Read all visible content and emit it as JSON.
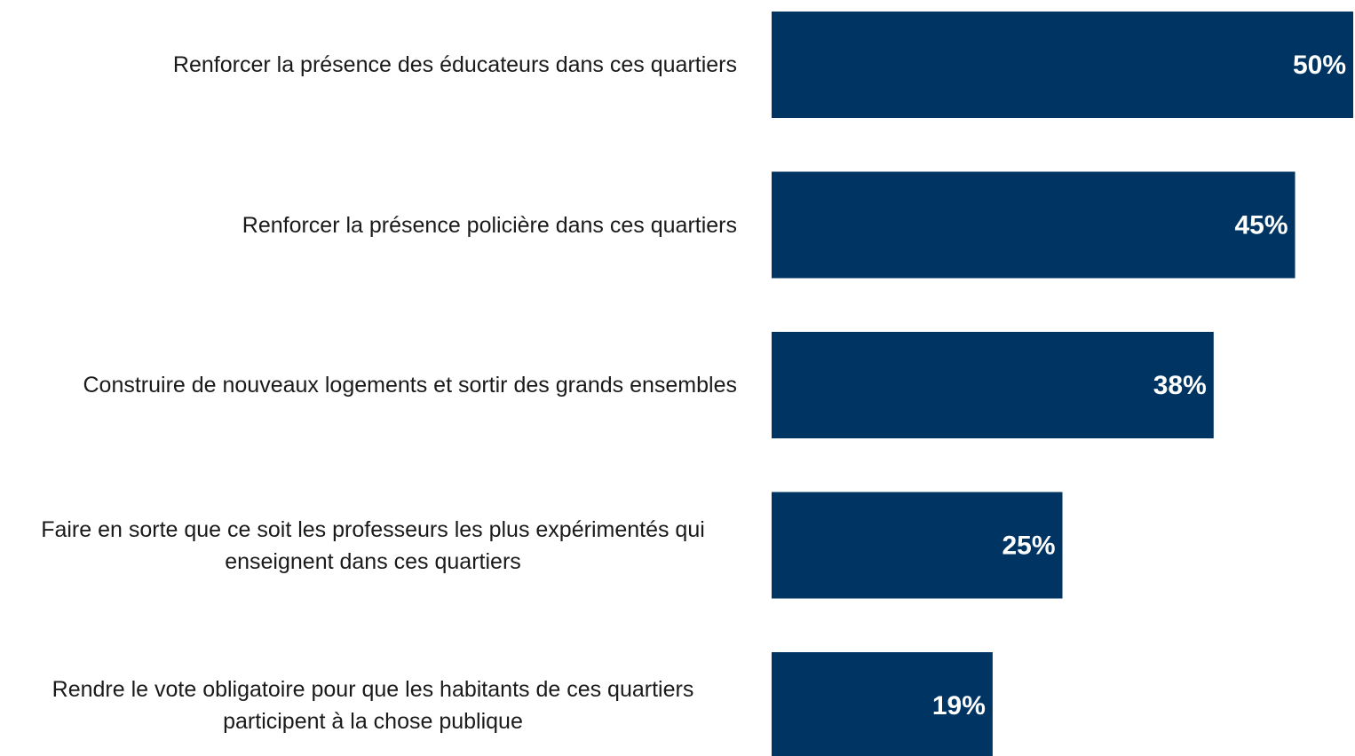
{
  "chart_data": {
    "type": "bar",
    "orientation": "horizontal",
    "categories": [
      "Renforcer la présence des éducateurs dans ces quartiers",
      "Renforcer la présence policière dans ces quartiers",
      "Construire de nouveaux logements et sortir des grands ensembles",
      "Faire en sorte que ce soit les professeurs les plus expérimentés qui enseignent dans ces quartiers",
      "Rendre le vote obligatoire pour que les habitants de ces quartiers participent à la chose publique"
    ],
    "values": [
      50,
      45,
      38,
      25,
      19
    ],
    "value_labels": [
      "50%",
      "45%",
      "38%",
      "25%",
      "19%"
    ],
    "color": "#003462"
  }
}
